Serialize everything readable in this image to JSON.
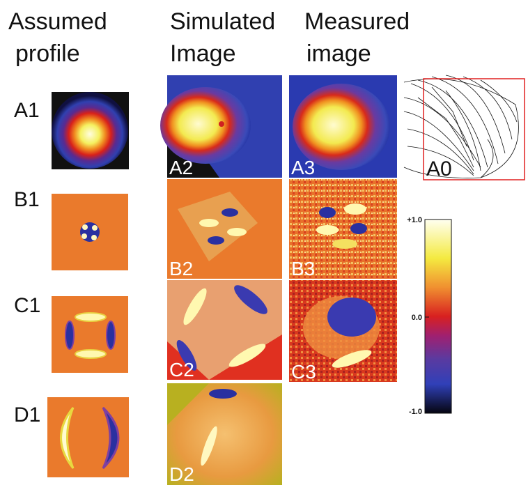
{
  "headers": [
    {
      "lines": [
        "Assumed",
        "profile"
      ]
    },
    {
      "lines": [
        "Simulated",
        "Image"
      ]
    },
    {
      "lines": [
        "Measured",
        "image"
      ]
    }
  ],
  "panels": {
    "assumed": [
      "A1",
      "B1",
      "C1",
      "D1"
    ],
    "simulated": [
      "A2",
      "B2",
      "C2",
      "D2"
    ],
    "measured": [
      "A3",
      "B3",
      "C3"
    ],
    "mesh": "A0"
  },
  "colorbar": {
    "labels": [
      "+1.0",
      "0.0",
      "-1.0"
    ]
  }
}
